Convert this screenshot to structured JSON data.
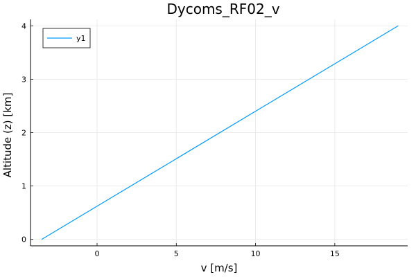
{
  "chart_data": {
    "type": "line",
    "title": "Dycoms_RF02_v",
    "xlabel": "v [m/s]",
    "ylabel": "Altitude (z) [km]",
    "xlim": [
      -4.2,
      19.6
    ],
    "ylim": [
      -0.12,
      4.12
    ],
    "xticks": [
      0,
      5,
      10,
      15
    ],
    "yticks": [
      0,
      1,
      2,
      3,
      4
    ],
    "grid": true,
    "legend_position": "top-left",
    "series": [
      {
        "name": "y1",
        "color": "#009af9",
        "x": [
          -3.5,
          19.0
        ],
        "y": [
          0,
          4
        ]
      }
    ]
  }
}
